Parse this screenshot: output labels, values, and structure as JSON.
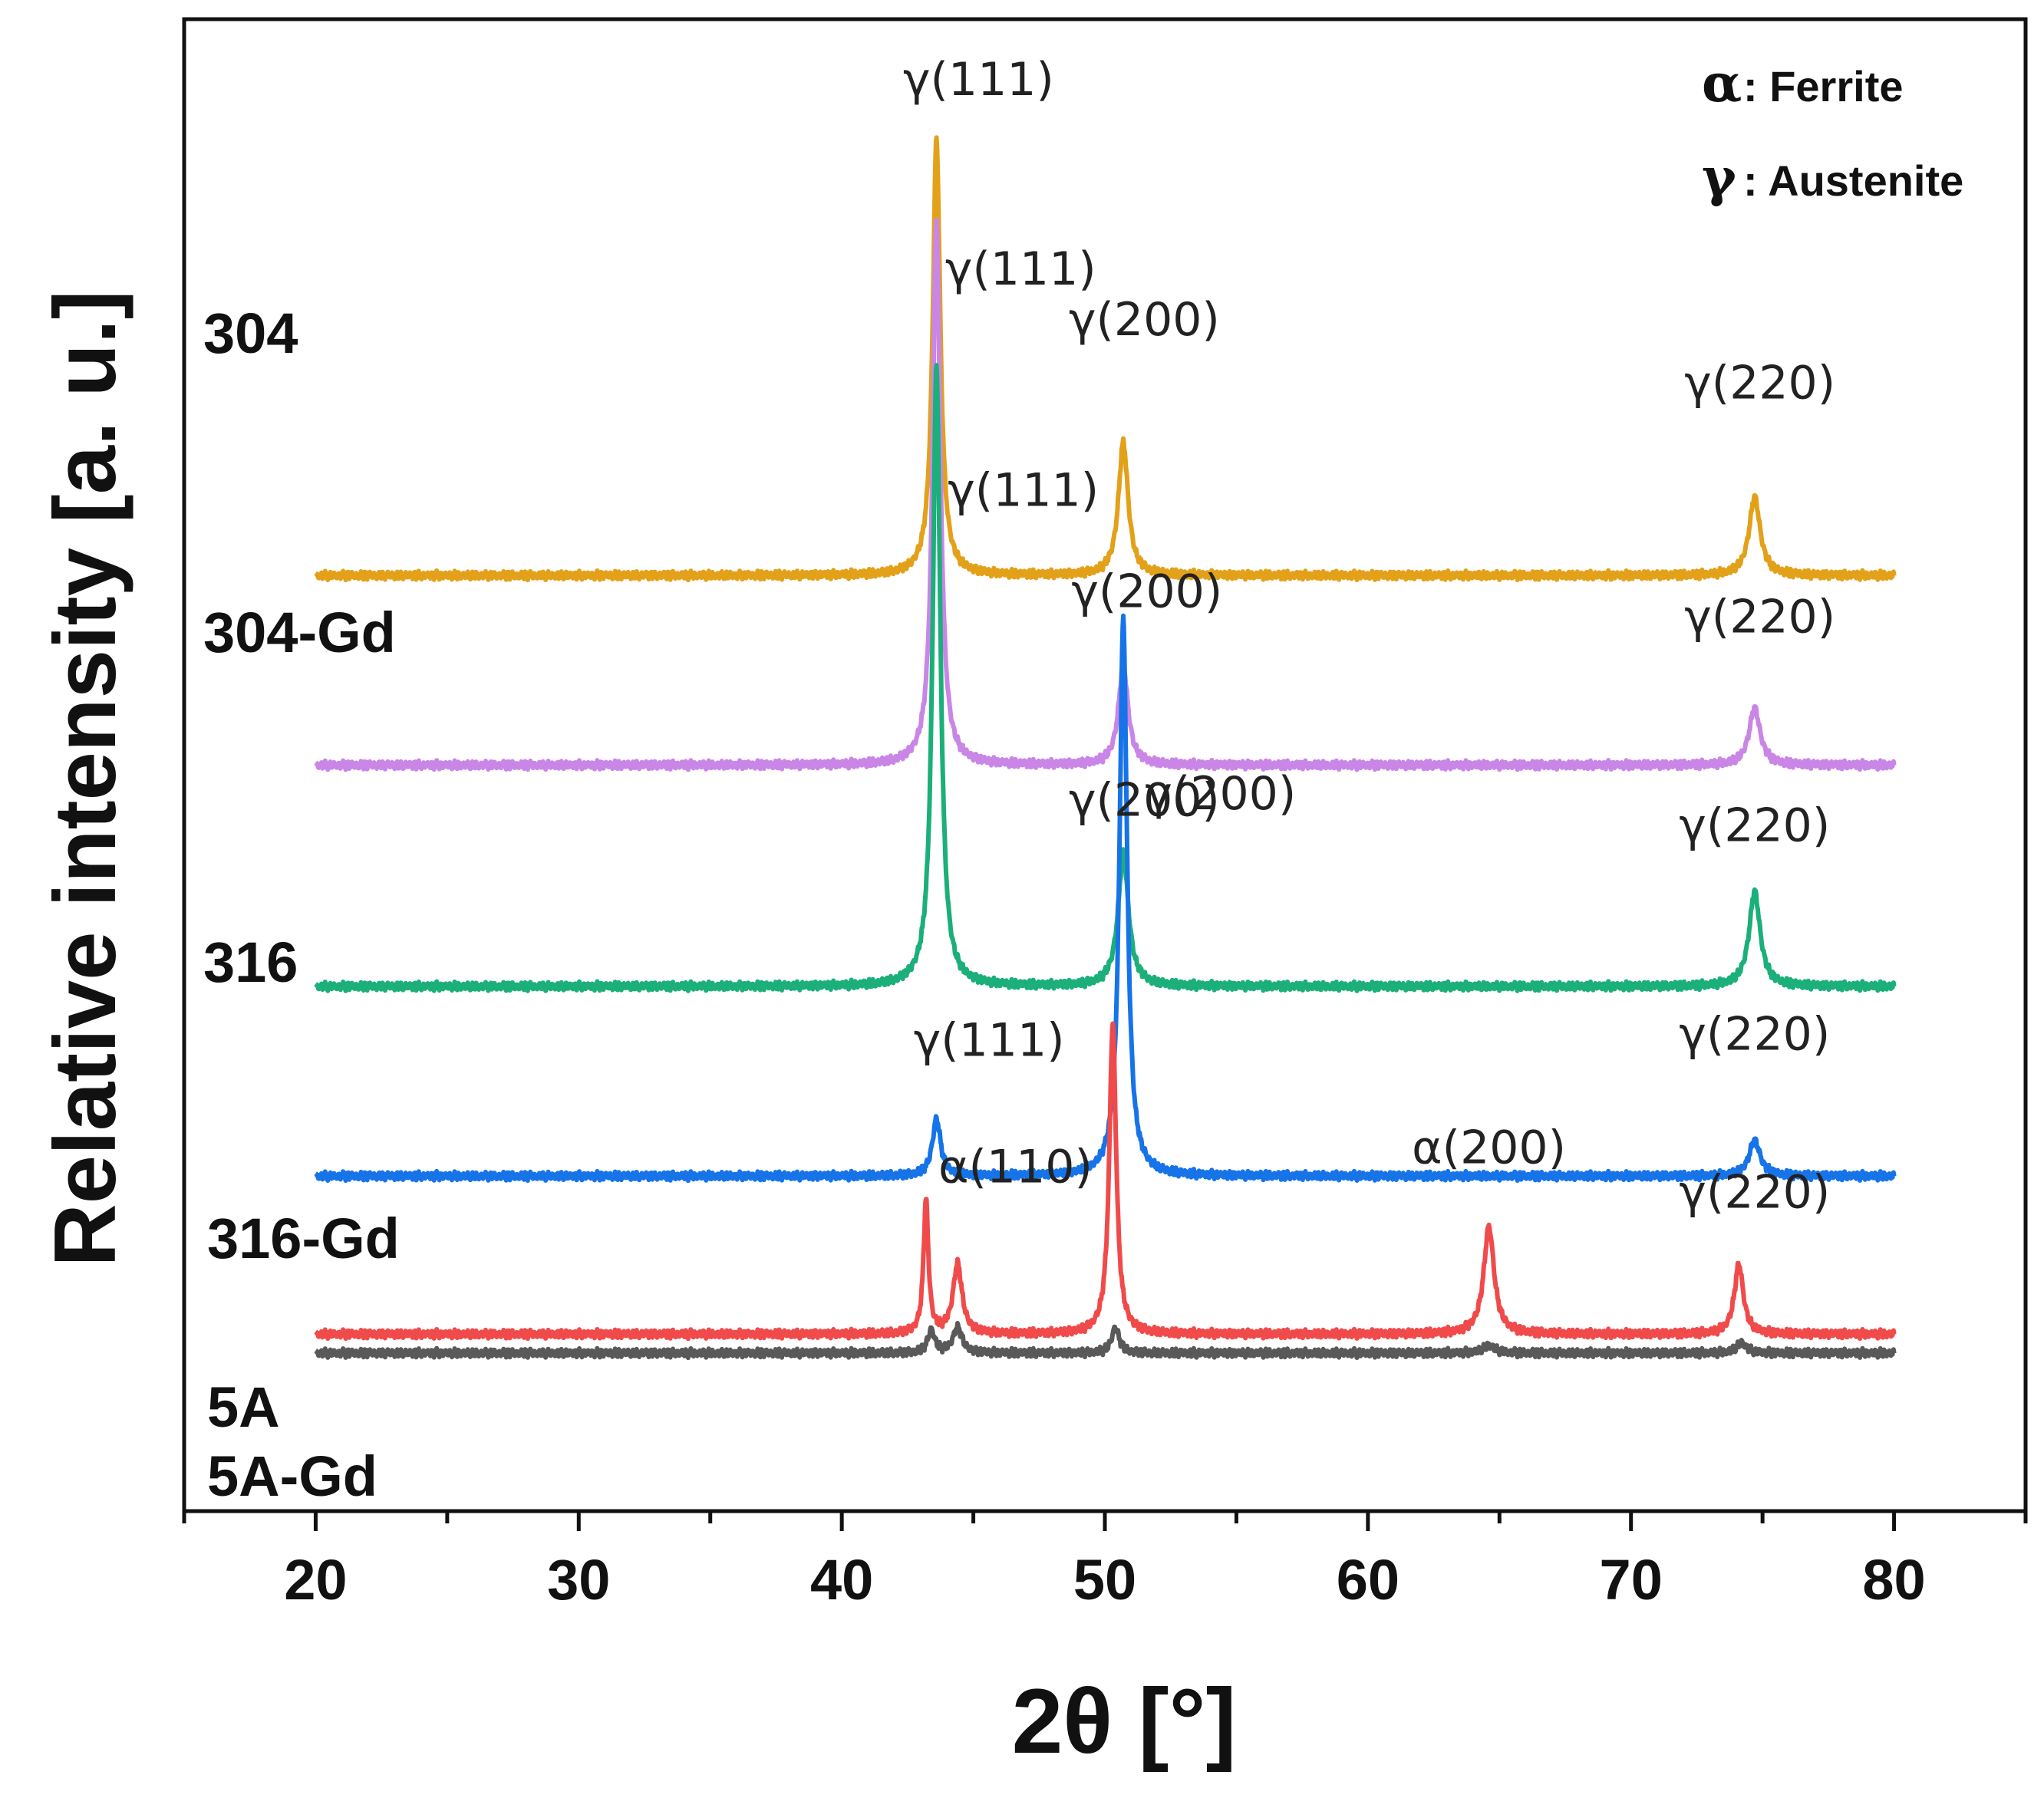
{
  "chart_data": {
    "type": "line",
    "title": "",
    "xlabel": "2θ [°]",
    "ylabel": "Relative intensity [a. u.]",
    "xlim": [
      15,
      85
    ],
    "data_range": [
      20,
      80
    ],
    "xticks": [
      20,
      30,
      40,
      50,
      60,
      70,
      80
    ],
    "yticks": "none",
    "grid": false,
    "legend": {
      "placement": "top-right",
      "entries": [
        {
          "symbol": "α",
          "text": ": Ferrite"
        },
        {
          "symbol": "γ",
          "text": ": Austenite"
        }
      ]
    },
    "series": [
      {
        "name": "304",
        "color": "#E3A11A",
        "baseline": 5.9,
        "peaks": [
          {
            "x": 43.6,
            "height": 3.45,
            "width": 0.22
          },
          {
            "x": 50.7,
            "height": 1.05,
            "width": 0.28
          },
          {
            "x": 74.7,
            "height": 0.62,
            "width": 0.32
          }
        ],
        "annotations": [
          {
            "text": "γ(111)",
            "x": 45.2,
            "y": 9.7
          },
          {
            "text": "γ(200)",
            "x": 51.5,
            "y": 7.8
          },
          {
            "text": "γ(220)",
            "x": 74.9,
            "y": 7.3
          }
        ]
      },
      {
        "name": "304-Gd",
        "color": "#C986E6",
        "baseline": 4.4,
        "peaks": [
          {
            "x": 43.6,
            "height": 4.3,
            "width": 0.22
          },
          {
            "x": 50.7,
            "height": 0.78,
            "width": 0.28
          },
          {
            "x": 74.7,
            "height": 0.45,
            "width": 0.32
          }
        ],
        "annotations": [
          {
            "text": "γ(111)",
            "x": 46.8,
            "y": 8.2
          },
          {
            "text": "γ(200)",
            "x": 51.6,
            "y": 5.65
          },
          {
            "text": "γ(220)",
            "x": 74.9,
            "y": 5.45
          }
        ]
      },
      {
        "name": "316",
        "color": "#1BAF7A",
        "baseline": 2.65,
        "peaks": [
          {
            "x": 43.6,
            "height": 4.9,
            "width": 0.22
          },
          {
            "x": 50.7,
            "height": 1.05,
            "width": 0.3
          },
          {
            "x": 74.7,
            "height": 0.75,
            "width": 0.32
          }
        ],
        "annotations": [
          {
            "text": "γ(111)",
            "x": 46.9,
            "y": 6.45
          },
          {
            "text": "γ(200)",
            "x": 51.5,
            "y": 4.0
          },
          {
            "text": "γ(220)",
            "x": 74.7,
            "y": 3.8
          }
        ]
      },
      {
        "name": "316-Gd",
        "color": "#1674E8",
        "baseline": 1.15,
        "peaks": [
          {
            "x": 43.6,
            "height": 0.45,
            "width": 0.24
          },
          {
            "x": 50.7,
            "height": 4.4,
            "width": 0.22
          },
          {
            "x": 74.7,
            "height": 0.28,
            "width": 0.32
          }
        ],
        "annotations": [
          {
            "text": "γ(200)",
            "x": 54.4,
            "y": 4.05
          },
          {
            "text": "γ(111)",
            "x": 45.6,
            "y": 2.1
          },
          {
            "text": "γ(220)",
            "x": 74.7,
            "y": 2.15
          }
        ]
      },
      {
        "name": "5A",
        "color": "#F04A4A",
        "baseline": -0.1,
        "peaks": [
          {
            "x": 43.2,
            "height": 1.06,
            "width": 0.14
          },
          {
            "x": 44.4,
            "height": 0.55,
            "width": 0.26
          },
          {
            "x": 50.3,
            "height": 2.45,
            "width": 0.2
          },
          {
            "x": 64.6,
            "height": 0.85,
            "width": 0.3
          },
          {
            "x": 74.1,
            "height": 0.55,
            "width": 0.26
          }
        ],
        "annotations": [
          {
            "text": "α(110)",
            "x": 46.6,
            "y": 1.1
          },
          {
            "text": "α(200)",
            "x": 64.6,
            "y": 1.25
          },
          {
            "text": "γ(220)",
            "x": 74.7,
            "y": 0.9
          }
        ]
      },
      {
        "name": "5A-Gd",
        "color": "#595959",
        "baseline": -0.25,
        "peaks": [
          {
            "x": 43.4,
            "height": 0.18,
            "width": 0.2
          },
          {
            "x": 44.4,
            "height": 0.2,
            "width": 0.26
          },
          {
            "x": 50.4,
            "height": 0.2,
            "width": 0.22
          },
          {
            "x": 64.6,
            "height": 0.06,
            "width": 0.35
          },
          {
            "x": 74.2,
            "height": 0.08,
            "width": 0.3
          }
        ],
        "annotations": []
      }
    ]
  }
}
